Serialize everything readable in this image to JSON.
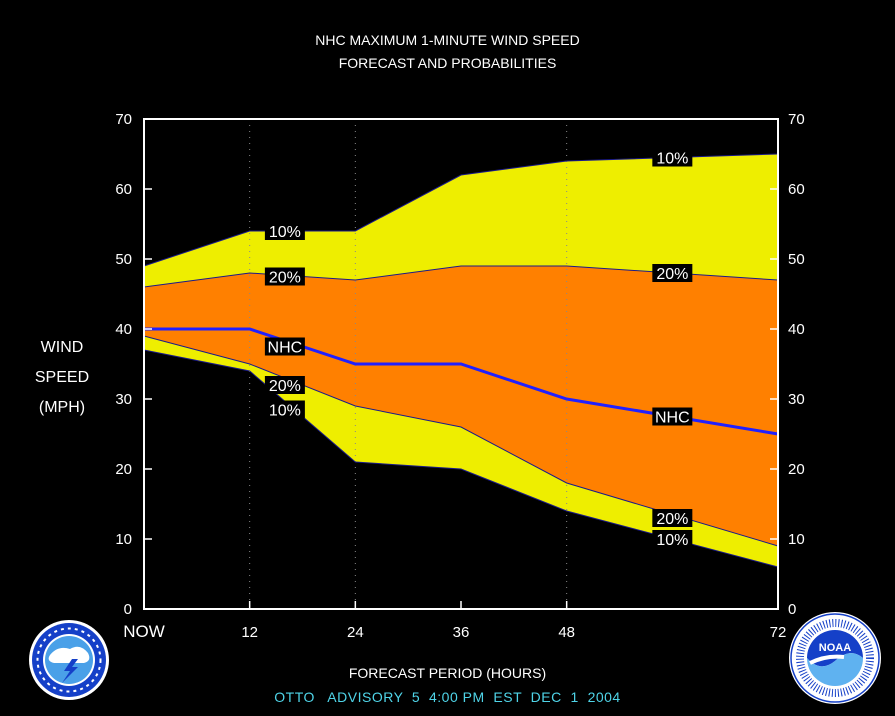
{
  "title_line1": "NHC MAXIMUM 1-MINUTE WIND SPEED",
  "title_line2": "FORECAST AND PROBABILITIES",
  "ylabel_lines": [
    "WIND",
    "SPEED",
    "(MPH)"
  ],
  "xlabel": "FORECAST PERIOD (HOURS)",
  "footer": "OTTO   ADVISORY  5  4:00 PM  EST  DEC  1  2004",
  "logos": {
    "left": "nws-logo",
    "right": "noaa-logo",
    "noaa_text": "NOAA"
  },
  "colors": {
    "background": "#000000",
    "yellow_band": "#eeee00",
    "orange_band": "#ff8000",
    "nhc_line": "#2020ff",
    "footer_text": "#4fd4e8"
  },
  "chart_data": {
    "type": "area",
    "x": [
      0,
      12,
      24,
      36,
      48,
      72
    ],
    "xtick_labels": [
      "NOW",
      "12",
      "24",
      "36",
      "48",
      "72"
    ],
    "xlim": [
      0,
      72
    ],
    "ylim": [
      0,
      70
    ],
    "yticks": [
      0,
      10,
      20,
      30,
      40,
      50,
      60,
      70
    ],
    "grid_x": [
      12,
      24,
      48
    ],
    "series": [
      {
        "name": "10%",
        "role": "upper10",
        "values": [
          49,
          54,
          54,
          62,
          64,
          65
        ]
      },
      {
        "name": "20%",
        "role": "upper20",
        "values": [
          46,
          48,
          47,
          49,
          49,
          47
        ]
      },
      {
        "name": "NHC",
        "role": "nhc",
        "values": [
          40,
          40,
          35,
          35,
          30,
          25
        ]
      },
      {
        "name": "20%",
        "role": "lower20",
        "values": [
          39,
          35,
          29,
          26,
          18,
          9
        ]
      },
      {
        "name": "10%",
        "role": "lower10",
        "values": [
          37,
          34,
          21,
          20,
          14,
          6
        ]
      }
    ],
    "annotations": [
      {
        "text": "10%",
        "x": 16,
        "y": 54
      },
      {
        "text": "20%",
        "x": 16,
        "y": 47.5
      },
      {
        "text": "NHC",
        "x": 16,
        "y": 37.5
      },
      {
        "text": "20%",
        "x": 16,
        "y": 32
      },
      {
        "text": "10%",
        "x": 16,
        "y": 28.5
      },
      {
        "text": "10%",
        "x": 60,
        "y": 64.5
      },
      {
        "text": "20%",
        "x": 60,
        "y": 48
      },
      {
        "text": "NHC",
        "x": 60,
        "y": 27.5
      },
      {
        "text": "20%",
        "x": 60,
        "y": 13
      },
      {
        "text": "10%",
        "x": 60,
        "y": 10
      }
    ]
  }
}
